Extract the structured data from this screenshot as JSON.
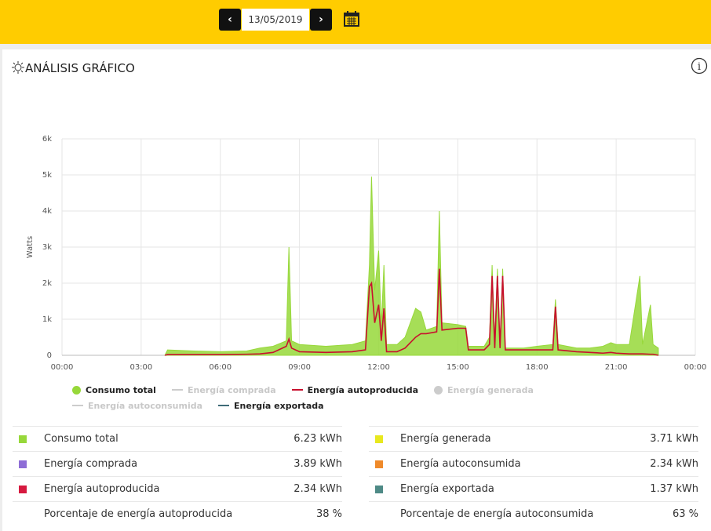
{
  "header": {
    "date": "13/05/2019"
  },
  "card_title": "ANÁLISIS GRÁFICO",
  "chart_data": {
    "type": "area-line",
    "ylabel": "Watts",
    "xlim": [
      0,
      24
    ],
    "xticks": [
      {
        "value": 0,
        "label": "00:00"
      },
      {
        "value": 3,
        "label": "03:00"
      },
      {
        "value": 6,
        "label": "06:00"
      },
      {
        "value": 9,
        "label": "09:00"
      },
      {
        "value": 12,
        "label": "12:00"
      },
      {
        "value": 15,
        "label": "15:00"
      },
      {
        "value": 18,
        "label": "18:00"
      },
      {
        "value": 21,
        "label": "21:00"
      },
      {
        "value": 24,
        "label": "00:00"
      }
    ],
    "ylim": [
      0,
      6000
    ],
    "yticks": [
      0,
      {
        "value": 1000,
        "label": "1k"
      },
      {
        "value": 2000,
        "label": "2k"
      },
      {
        "value": 3000,
        "label": "3k"
      },
      {
        "value": 4000,
        "label": "4k"
      },
      {
        "value": 5000,
        "label": "5k"
      },
      {
        "value": 6000,
        "label": "6k"
      }
    ],
    "grid": true,
    "x": [
      3.9,
      4.0,
      5.0,
      6.0,
      7.0,
      7.5,
      8.0,
      8.5,
      8.6,
      8.7,
      9.0,
      10.0,
      11.0,
      11.5,
      11.65,
      11.73,
      11.85,
      12.0,
      12.1,
      12.2,
      12.3,
      12.7,
      13.0,
      13.4,
      13.6,
      13.8,
      14.2,
      14.3,
      14.4,
      15.0,
      15.3,
      15.4,
      16.0,
      16.2,
      16.3,
      16.4,
      16.5,
      16.6,
      16.7,
      16.8,
      17.5,
      18.0,
      18.6,
      18.7,
      18.8,
      19.5,
      20.0,
      20.5,
      20.8,
      21.0,
      21.5,
      21.9,
      22.0,
      22.3,
      22.4,
      22.6
    ],
    "series": [
      {
        "name": "Consumo total",
        "color": "#97d83a",
        "style": "area",
        "marker": "circle",
        "hidden": false,
        "values": [
          0,
          150,
          120,
          100,
          120,
          200,
          250,
          400,
          3000,
          400,
          300,
          250,
          300,
          400,
          2500,
          4950,
          1800,
          2900,
          800,
          2500,
          300,
          300,
          500,
          1300,
          1200,
          700,
          800,
          4000,
          900,
          850,
          800,
          250,
          250,
          500,
          2500,
          400,
          2400,
          300,
          2400,
          200,
          200,
          250,
          300,
          1550,
          300,
          200,
          200,
          250,
          350,
          300,
          300,
          2200,
          300,
          1400,
          300,
          200
        ]
      },
      {
        "name": "Energía comprada",
        "color": "#cccccc",
        "style": "line",
        "marker": "line",
        "hidden": true
      },
      {
        "name": "Energía autoproducida",
        "color": "#c8102e",
        "style": "line",
        "marker": "line",
        "hidden": false,
        "values": [
          0,
          20,
          20,
          20,
          30,
          40,
          80,
          250,
          450,
          200,
          100,
          80,
          100,
          150,
          1900,
          2000,
          900,
          1400,
          400,
          1300,
          100,
          100,
          200,
          500,
          600,
          600,
          650,
          2400,
          700,
          750,
          750,
          150,
          150,
          300,
          2200,
          200,
          2200,
          200,
          2200,
          150,
          150,
          150,
          150,
          1350,
          150,
          100,
          80,
          60,
          80,
          60,
          40,
          40,
          40,
          30,
          30,
          0
        ]
      },
      {
        "name": "Energía generada",
        "color": "#cccccc",
        "style": "line",
        "marker": "circle",
        "hidden": true
      },
      {
        "name": "Energía autoconsumida",
        "color": "#cccccc",
        "style": "line",
        "marker": "line",
        "hidden": true
      },
      {
        "name": "Energía exportada",
        "color": "#3f6b78",
        "style": "line",
        "marker": "line",
        "hidden": false
      }
    ]
  },
  "summary": {
    "left": [
      {
        "label": "Consumo total",
        "value": "6.23 kWh",
        "color": "#97d83a"
      },
      {
        "label": "Energía comprada",
        "value": "3.89 kWh",
        "color": "#8e6dd6"
      },
      {
        "label": "Energía autoproducida",
        "value": "2.34 kWh",
        "color": "#d6193f"
      },
      {
        "label": "Porcentaje de energía autoproducida",
        "value": "38 %"
      }
    ],
    "right": [
      {
        "label": "Energía generada",
        "value": "3.71 kWh",
        "color": "#e8e81e"
      },
      {
        "label": "Energía autoconsumida",
        "value": "2.34 kWh",
        "color": "#ef8a2a"
      },
      {
        "label": "Energía exportada",
        "value": "1.37 kWh",
        "color": "#4e8a86"
      },
      {
        "label": "Porcentaje de energía autoconsumida",
        "value": "63 %"
      }
    ]
  }
}
